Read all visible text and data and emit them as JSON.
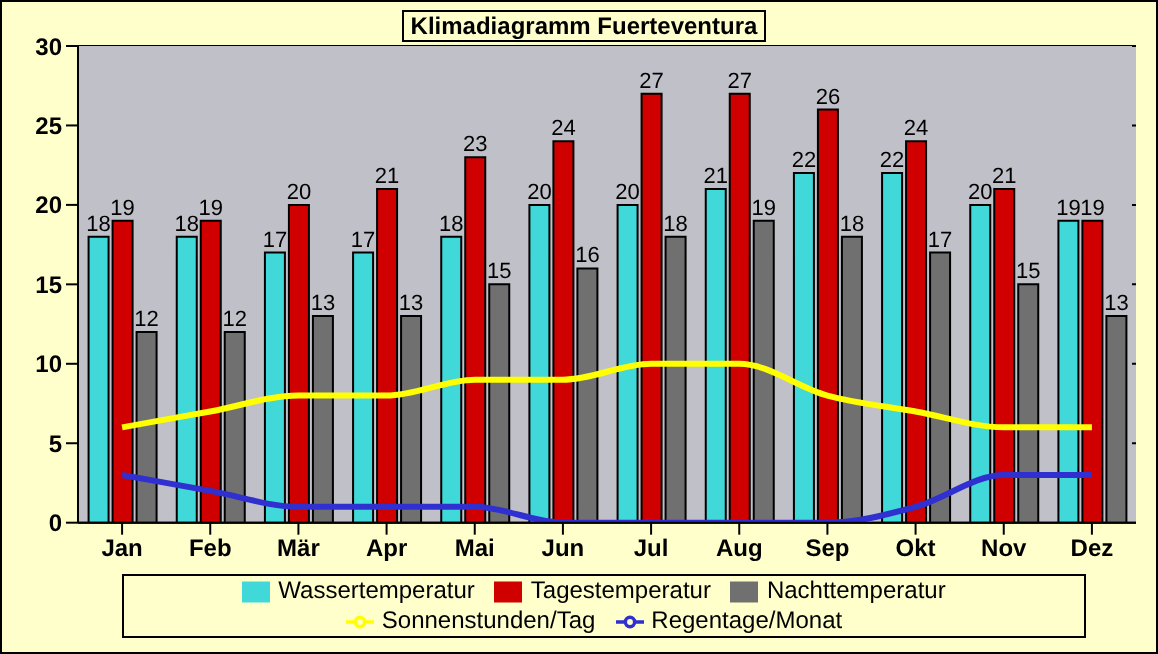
{
  "chart_data": {
    "type": "bar",
    "title": "Klimadiagramm Fuerteventura",
    "categories": [
      "Jan",
      "Feb",
      "Mär",
      "Apr",
      "Mai",
      "Jun",
      "Jul",
      "Aug",
      "Sep",
      "Okt",
      "Nov",
      "Dez"
    ],
    "series": [
      {
        "name": "Wassertemperatur",
        "color": "#40d8d8",
        "values": [
          18,
          18,
          17,
          17,
          18,
          20,
          20,
          21,
          22,
          22,
          20,
          19
        ],
        "value_labels": [
          "18",
          "18",
          "17",
          "17",
          "18",
          "20",
          "20",
          "21",
          "22",
          "22",
          "20",
          "19"
        ]
      },
      {
        "name": "Tagestemperatur",
        "color": "#d00000",
        "values": [
          19,
          19,
          20,
          21,
          23,
          24,
          27,
          27,
          26,
          24,
          21,
          19
        ],
        "value_labels": [
          "19",
          "19",
          "20",
          "21",
          "23",
          "24",
          "27",
          "27",
          "26",
          "24",
          "21",
          "19"
        ]
      },
      {
        "name": "Nachttemperatur",
        "color": "#707070",
        "values": [
          12,
          12,
          13,
          13,
          15,
          16,
          18,
          19,
          18,
          17,
          15,
          13
        ],
        "value_labels": [
          "12",
          "12",
          "13",
          "13",
          "15",
          "16",
          "18",
          "19",
          "18",
          "17",
          "15",
          "13"
        ]
      },
      {
        "name": "Sonnenstunden/Tag",
        "type": "line",
        "color": "#ffff00",
        "values": [
          6,
          7,
          8,
          8,
          9,
          9,
          10,
          10,
          8,
          7,
          6,
          6
        ]
      },
      {
        "name": "Regentage/Monat",
        "type": "line",
        "color": "#3030d0",
        "values": [
          3,
          2,
          1,
          1,
          1,
          0,
          0,
          0,
          0,
          1,
          3,
          3
        ]
      }
    ],
    "ylim": [
      0,
      30
    ],
    "yticks": [
      0,
      5,
      10,
      15,
      20,
      25,
      30
    ],
    "grid": "y",
    "legend": "bottom",
    "marker": "none",
    "line_style": "solid"
  }
}
